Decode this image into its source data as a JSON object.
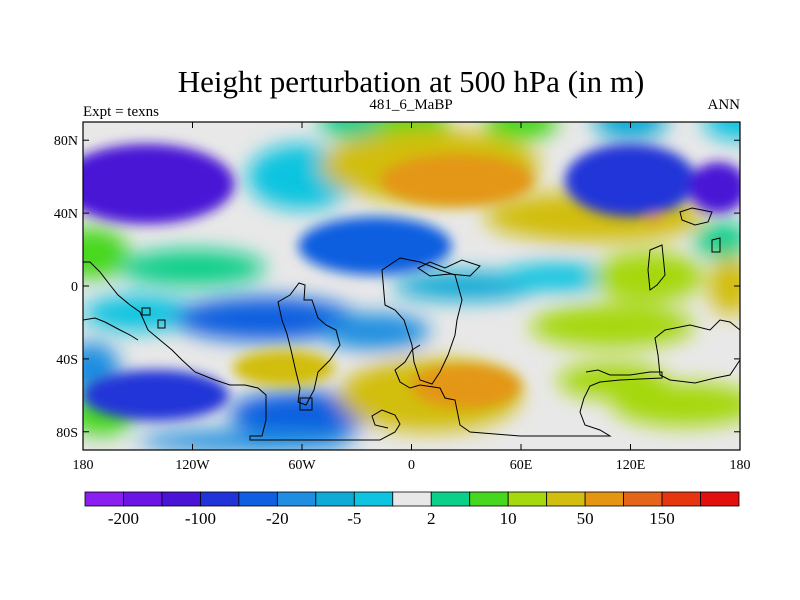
{
  "chart_data": {
    "type": "heatmap",
    "title": "Height perturbation at 500 hPa (in m)",
    "subtitle_left": "Expt = texns",
    "subtitle_center": "481_6_MaBP",
    "subtitle_right": "ANN",
    "x_ticks": [
      {
        "value": -180,
        "label": "180"
      },
      {
        "value": -120,
        "label": "120W"
      },
      {
        "value": -60,
        "label": "60W"
      },
      {
        "value": 0,
        "label": "0"
      },
      {
        "value": 60,
        "label": "60E"
      },
      {
        "value": 120,
        "label": "120E"
      },
      {
        "value": 180,
        "label": "180"
      }
    ],
    "y_ticks": [
      {
        "value": 80,
        "label": "80N"
      },
      {
        "value": 40,
        "label": "40N"
      },
      {
        "value": 0,
        "label": "0"
      },
      {
        "value": -40,
        "label": "40S"
      },
      {
        "value": -80,
        "label": "80S"
      }
    ],
    "xlim": [
      -180,
      180
    ],
    "ylim": [
      -90,
      90
    ],
    "colorbar": {
      "colors": [
        "#8b1ff0",
        "#6a14e6",
        "#4a14d6",
        "#2034d8",
        "#0f5fe0",
        "#1f8ee0",
        "#0faad6",
        "#0fc4e0",
        "#e8e8e8",
        "#0ccf8a",
        "#46d81e",
        "#a6d80e",
        "#d2be0e",
        "#e49612",
        "#e4641a",
        "#e6360f",
        "#e30f0f"
      ],
      "labeled_edges": [
        {
          "edge": 1,
          "label": "-200"
        },
        {
          "edge": 3,
          "label": "-100"
        },
        {
          "edge": 5,
          "label": "-20"
        },
        {
          "edge": 7,
          "label": "-5"
        },
        {
          "edge": 9,
          "label": "2"
        },
        {
          "edge": 11,
          "label": "10"
        },
        {
          "edge": 13,
          "label": "50"
        },
        {
          "edge": 15,
          "label": "150"
        }
      ]
    },
    "field": [
      {
        "lon": -180,
        "lat": 90,
        "value": -2
      },
      {
        "lon": -30,
        "lat": 90,
        "value": 4
      },
      {
        "lon": 0,
        "lat": 90,
        "value": 8
      },
      {
        "lon": 60,
        "lat": 90,
        "value": 6
      },
      {
        "lon": 120,
        "lat": 90,
        "value": -8
      },
      {
        "lon": 180,
        "lat": 90,
        "value": -3
      },
      {
        "lon": -145,
        "lat": 56,
        "value": -120,
        "extent_lon": 48,
        "extent_lat": 22
      },
      {
        "lon": -60,
        "lat": 60,
        "value": -3,
        "extent_lon": 30,
        "extent_lat": 18
      },
      {
        "lon": 10,
        "lat": 66,
        "value": 25,
        "extent_lon": 60,
        "extent_lat": 20
      },
      {
        "lon": 25,
        "lat": 58,
        "value": 70,
        "extent_lon": 42,
        "extent_lat": 14
      },
      {
        "lon": 120,
        "lat": 58,
        "value": -60,
        "extent_lon": 36,
        "extent_lat": 20
      },
      {
        "lon": 168,
        "lat": 54,
        "value": -150,
        "extent_lon": 16,
        "extent_lat": 14
      },
      {
        "lon": -20,
        "lat": 22,
        "value": -45,
        "extent_lon": 42,
        "extent_lat": 16
      },
      {
        "lon": 100,
        "lat": 38,
        "value": 30,
        "extent_lon": 60,
        "extent_lat": 14
      },
      {
        "lon": 133,
        "lat": 37,
        "value": 90,
        "extent_lon": 4,
        "extent_lat": 2
      },
      {
        "lon": 170,
        "lat": 25,
        "value": 3,
        "extent_lon": 15,
        "extent_lat": 10
      },
      {
        "lon": -175,
        "lat": 18,
        "value": 8,
        "extent_lon": 20,
        "extent_lat": 14
      },
      {
        "lon": -120,
        "lat": 10,
        "value": 2,
        "extent_lon": 40,
        "extent_lat": 10
      },
      {
        "lon": 30,
        "lat": 0,
        "value": -10,
        "extent_lon": 40,
        "extent_lat": 8
      },
      {
        "lon": 80,
        "lat": 5,
        "value": -3,
        "extent_lon": 30,
        "extent_lat": 8
      },
      {
        "lon": 130,
        "lat": 5,
        "value": 15,
        "extent_lon": 30,
        "extent_lat": 14
      },
      {
        "lon": 175,
        "lat": 0,
        "value": 20,
        "extent_lon": 12,
        "extent_lat": 16
      },
      {
        "lon": -150,
        "lat": -15,
        "value": -4,
        "extent_lon": 30,
        "extent_lat": 10
      },
      {
        "lon": -80,
        "lat": -18,
        "value": -25,
        "extent_lon": 50,
        "extent_lat": 12
      },
      {
        "lon": -20,
        "lat": -25,
        "value": -12,
        "extent_lon": 30,
        "extent_lat": 10
      },
      {
        "lon": 110,
        "lat": -22,
        "value": 12,
        "extent_lon": 45,
        "extent_lat": 12
      },
      {
        "lon": -140,
        "lat": -60,
        "value": -60,
        "extent_lon": 40,
        "extent_lat": 14
      },
      {
        "lon": -70,
        "lat": -45,
        "value": 45,
        "extent_lon": 28,
        "extent_lat": 10
      },
      {
        "lon": -60,
        "lat": -70,
        "value": -30,
        "extent_lon": 40,
        "extent_lat": 12
      },
      {
        "lon": 30,
        "lat": -55,
        "value": 70,
        "extent_lon": 30,
        "extent_lat": 12
      },
      {
        "lon": 10,
        "lat": -60,
        "value": 25,
        "extent_lon": 50,
        "extent_lat": 20
      },
      {
        "lon": 110,
        "lat": -52,
        "value": 10,
        "extent_lon": 30,
        "extent_lat": 10
      },
      {
        "lon": 150,
        "lat": -65,
        "value": 12,
        "extent_lon": 40,
        "extent_lat": 12
      },
      {
        "lon": -175,
        "lat": -45,
        "value": -15,
        "extent_lon": 15,
        "extent_lat": 14
      },
      {
        "lon": -170,
        "lat": -70,
        "value": 8,
        "extent_lon": 18,
        "extent_lat": 12
      },
      {
        "lon": -90,
        "lat": -85,
        "value": -20,
        "extent_lon": 60,
        "extent_lat": 6
      }
    ]
  }
}
